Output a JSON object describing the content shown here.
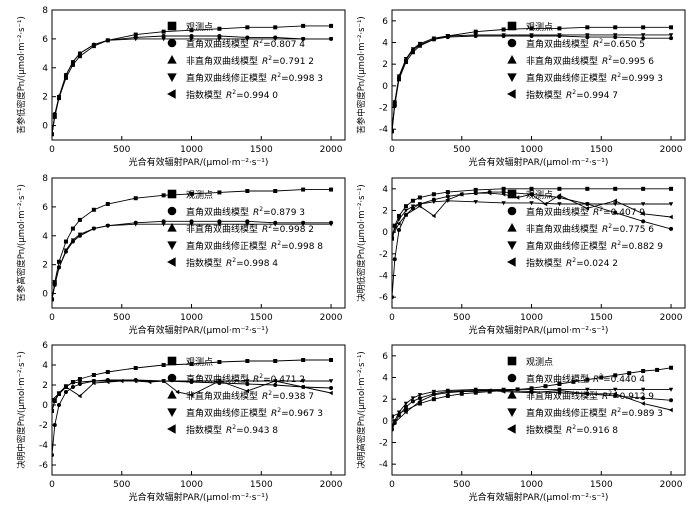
{
  "marker_names": [
    "square",
    "circle",
    "triangle-up",
    "triangle-down",
    "triangle-left"
  ],
  "chart_data": [
    {
      "type": "line",
      "xlabel": "光合有效辐射PAR/(μmol·m⁻²·s⁻¹)",
      "ylabel": "苦参低密度Pn/(μmol·m⁻²·s⁻¹)",
      "xlim": [
        0,
        2100
      ],
      "ylim": [
        -1,
        8
      ],
      "xticks": [
        0,
        500,
        1000,
        1500,
        2000
      ],
      "yticks": [
        0,
        2,
        4,
        6,
        8
      ],
      "legend": [
        {
          "marker": "square",
          "label": "观测点",
          "r2": ""
        },
        {
          "marker": "circle",
          "label": "直角双曲线模型",
          "r2": "=0.807 4"
        },
        {
          "marker": "triangle-up",
          "label": "非直角双曲线模型",
          "r2": "=0.791 2"
        },
        {
          "marker": "triangle-down",
          "label": "直角双曲线修正模型",
          "r2": "=0.998 3"
        },
        {
          "marker": "triangle-left",
          "label": "指数模型",
          "r2": "=0.994 0"
        }
      ],
      "series": [
        {
          "x": [
            0,
            20,
            50,
            100,
            150,
            200,
            300,
            400,
            600,
            800,
            1000,
            1200,
            1400,
            1600,
            1800,
            2000
          ],
          "y": [
            -0.6,
            0.8,
            2.0,
            3.5,
            4.4,
            5.0,
            5.6,
            5.9,
            6.1,
            6.2,
            6.2,
            6.2,
            6.1,
            6.1,
            6.0,
            6.0
          ]
        },
        {
          "x": [
            0,
            20,
            50,
            100,
            150,
            200,
            300,
            400,
            600,
            800,
            1000,
            1200,
            1400,
            1600,
            1800,
            2000
          ],
          "y": [
            -0.6,
            0.6,
            1.9,
            3.3,
            4.2,
            4.8,
            5.5,
            5.9,
            6.3,
            6.5,
            6.6,
            6.7,
            6.8,
            6.8,
            6.9,
            6.9
          ]
        },
        {
          "x": [
            0,
            20,
            50,
            100,
            150,
            200,
            300,
            400,
            600,
            800,
            1000,
            1200,
            1400,
            1600,
            1800,
            2000
          ],
          "y": [
            -0.6,
            0.7,
            2.0,
            3.5,
            4.4,
            5.0,
            5.6,
            5.9,
            6.0,
            6.0,
            6.0,
            6.0,
            6.0,
            6.0,
            6.0,
            6.0
          ]
        }
      ]
    },
    {
      "type": "line",
      "xlabel": "光合有效辐射PAR/(μmol·m⁻²·s⁻¹)",
      "ylabel": "苦参中密度Pn/(μmol·m⁻²·s⁻¹)",
      "xlim": [
        0,
        2100
      ],
      "ylim": [
        -5,
        7
      ],
      "xticks": [
        0,
        500,
        1000,
        1500,
        2000
      ],
      "yticks": [
        -4,
        -2,
        0,
        2,
        4,
        6
      ],
      "legend": [
        {
          "marker": "square",
          "label": "观测点",
          "r2": ""
        },
        {
          "marker": "circle",
          "label": "直角双曲线模型",
          "r2": "=0.650 5"
        },
        {
          "marker": "triangle-up",
          "label": "非直角双曲线模型",
          "r2": "=0.995 6"
        },
        {
          "marker": "triangle-down",
          "label": "直角双曲线修正模型",
          "r2": "=0.999 3"
        },
        {
          "marker": "triangle-left",
          "label": "指数模型",
          "r2": "=0.994 7"
        }
      ],
      "series": [
        {
          "x": [
            0,
            20,
            50,
            100,
            150,
            200,
            300,
            400,
            600,
            800,
            1000,
            1200,
            1400,
            1600,
            1800,
            2000
          ],
          "y": [
            -4.2,
            -1.5,
            0.8,
            2.4,
            3.3,
            3.8,
            4.3,
            4.5,
            4.6,
            4.6,
            4.6,
            4.6,
            4.5,
            4.5,
            4.4,
            4.4
          ]
        },
        {
          "x": [
            0,
            20,
            50,
            100,
            150,
            200,
            300,
            400,
            600,
            800,
            1000,
            1200,
            1400,
            1600,
            1800,
            2000
          ],
          "y": [
            -4.2,
            -1.8,
            0.6,
            2.2,
            3.1,
            3.7,
            4.3,
            4.6,
            5.0,
            5.2,
            5.3,
            5.3,
            5.4,
            5.4,
            5.4,
            5.4
          ]
        },
        {
          "x": [
            0,
            20,
            50,
            100,
            150,
            200,
            300,
            400,
            600,
            800,
            1000,
            1200,
            1400,
            1600,
            1800,
            2000
          ],
          "y": [
            -4.2,
            -1.5,
            0.9,
            2.5,
            3.4,
            3.9,
            4.4,
            4.6,
            4.7,
            4.7,
            4.7,
            4.7,
            4.7,
            4.7,
            4.7,
            4.7
          ]
        }
      ]
    },
    {
      "type": "line",
      "xlabel": "光合有效辐射PAR/(μmol·m⁻²·s⁻¹)",
      "ylabel": "苦参高密度Pn/(μmol·m⁻²·s⁻¹)",
      "xlim": [
        0,
        2100
      ],
      "ylim": [
        -1,
        8
      ],
      "xticks": [
        0,
        500,
        1000,
        1500,
        2000
      ],
      "yticks": [
        0,
        2,
        4,
        6,
        8
      ],
      "legend": [
        {
          "marker": "square",
          "label": "观测点",
          "r2": ""
        },
        {
          "marker": "circle",
          "label": "直角双曲线模型",
          "r2": "=0.879 3"
        },
        {
          "marker": "triangle-up",
          "label": "非直角双曲线模型",
          "r2": "=0.998 2"
        },
        {
          "marker": "triangle-down",
          "label": "直角双曲线修正模型",
          "r2": "=0.998 8"
        },
        {
          "marker": "triangle-left",
          "label": "指数模型",
          "r2": "=0.998 4"
        }
      ],
      "series": [
        {
          "x": [
            0,
            20,
            50,
            100,
            150,
            200,
            300,
            400,
            600,
            800,
            1000,
            1200,
            1400,
            1600,
            1800,
            2000
          ],
          "y": [
            -0.4,
            0.6,
            1.8,
            2.9,
            3.6,
            4.0,
            4.5,
            4.7,
            4.9,
            5.0,
            5.0,
            5.0,
            5.0,
            4.9,
            4.9,
            4.9
          ]
        },
        {
          "x": [
            0,
            20,
            50,
            100,
            150,
            200,
            300,
            400,
            600,
            800,
            1000,
            1200,
            1400,
            1600,
            1800,
            2000
          ],
          "y": [
            -0.4,
            0.8,
            2.2,
            3.6,
            4.5,
            5.1,
            5.8,
            6.2,
            6.6,
            6.8,
            6.9,
            7.0,
            7.1,
            7.1,
            7.2,
            7.2
          ]
        },
        {
          "x": [
            0,
            20,
            50,
            100,
            150,
            200,
            300,
            400,
            600,
            800,
            1000,
            1200,
            1400,
            1600,
            1800,
            2000
          ],
          "y": [
            -0.4,
            0.6,
            1.8,
            3.0,
            3.7,
            4.1,
            4.5,
            4.7,
            4.8,
            4.8,
            4.8,
            4.8,
            4.8,
            4.8,
            4.8,
            4.8
          ]
        }
      ]
    },
    {
      "type": "line",
      "xlabel": "光合有效辐射PAR/(μmol·m⁻²·s⁻¹)",
      "ylabel": "决明低密度Pn/(μmol·m⁻²·s⁻¹)",
      "xlim": [
        0,
        2100
      ],
      "ylim": [
        -7,
        5
      ],
      "xticks": [
        0,
        500,
        1000,
        1500,
        2000
      ],
      "yticks": [
        -6,
        -4,
        -2,
        0,
        2,
        4
      ],
      "legend": [
        {
          "marker": "square",
          "label": "观测点",
          "r2": ""
        },
        {
          "marker": "circle",
          "label": "直角双曲线模型",
          "r2": "=0.407 9"
        },
        {
          "marker": "triangle-up",
          "label": "非直角双曲线模型",
          "r2": "=0.775 6"
        },
        {
          "marker": "triangle-down",
          "label": "直角双曲线修正模型",
          "r2": "=0.882 9"
        },
        {
          "marker": "triangle-left",
          "label": "指数模型",
          "r2": "=0.024 2"
        }
      ],
      "series": [
        {
          "x": [
            0,
            20,
            50,
            100,
            150,
            200,
            300,
            400,
            500,
            600,
            700,
            800,
            1000,
            1200,
            1400,
            1600,
            1800,
            2000
          ],
          "y": [
            -6.0,
            -2.5,
            0.2,
            1.6,
            2.2,
            2.6,
            3.0,
            3.3,
            3.5,
            3.6,
            3.7,
            3.7,
            3.5,
            3.2,
            2.6,
            1.8,
            1.0,
            0.3
          ]
        },
        {
          "x": [
            0,
            20,
            50,
            100,
            150,
            200,
            300,
            400,
            600,
            800,
            1000,
            1200,
            1400,
            1600,
            1800,
            2000
          ],
          "y": [
            -0.6,
            0.6,
            1.5,
            2.4,
            2.9,
            3.2,
            3.5,
            3.7,
            3.9,
            4.0,
            4.0,
            4.0,
            4.0,
            4.0,
            4.0,
            4.0
          ]
        },
        {
          "x": [
            0,
            20,
            50,
            100,
            150,
            200,
            300,
            400,
            600,
            800,
            1000,
            1200,
            1400,
            1600,
            1800,
            2000
          ],
          "y": [
            -0.6,
            0.4,
            1.2,
            2.0,
            2.4,
            2.6,
            2.8,
            2.9,
            2.8,
            2.7,
            2.7,
            2.6,
            2.6,
            2.6,
            2.6,
            2.6
          ]
        },
        {
          "x": [
            0,
            50,
            100,
            200,
            300,
            400,
            500,
            600,
            700,
            800,
            900,
            1000,
            1100,
            1200,
            1400,
            1600,
            1800,
            2000
          ],
          "y": [
            -0.4,
            0.8,
            1.6,
            2.4,
            1.5,
            3.0,
            3.5,
            3.6,
            3.6,
            3.5,
            3.2,
            3.5,
            2.6,
            3.4,
            2.2,
            2.9,
            1.7,
            1.4
          ]
        }
      ]
    },
    {
      "type": "line",
      "xlabel": "光合有效辐射PAR/(μmol·m⁻²·s⁻¹)",
      "ylabel": "决明中密度Pn/(μmol·m⁻²·s⁻¹)",
      "xlim": [
        0,
        2100
      ],
      "ylim": [
        -7,
        6
      ],
      "xticks": [
        0,
        500,
        1000,
        1500,
        2000
      ],
      "yticks": [
        -6,
        -4,
        -2,
        0,
        2,
        4,
        6
      ],
      "legend": [
        {
          "marker": "square",
          "label": "观测点",
          "r2": ""
        },
        {
          "marker": "circle",
          "label": "直角双曲线模型",
          "r2": "=0.471 2"
        },
        {
          "marker": "triangle-up",
          "label": "非直角双曲线模型",
          "r2": "=0.938 7"
        },
        {
          "marker": "triangle-down",
          "label": "直角双曲线修正模型",
          "r2": "=0.967 3"
        },
        {
          "marker": "triangle-left",
          "label": "指数模型",
          "r2": "=0.943 8"
        }
      ],
      "series": [
        {
          "x": [
            0,
            20,
            50,
            100,
            150,
            200,
            300,
            400,
            600,
            800,
            1000,
            1200,
            1400,
            1600,
            1800,
            2000
          ],
          "y": [
            -5.0,
            -2.0,
            0.0,
            1.3,
            1.8,
            2.1,
            2.4,
            2.5,
            2.5,
            2.4,
            2.3,
            2.2,
            2.1,
            2.0,
            1.8,
            1.7
          ]
        },
        {
          "x": [
            0,
            20,
            50,
            100,
            150,
            200,
            300,
            400,
            600,
            800,
            1000,
            1200,
            1400,
            1600,
            1800,
            2000
          ],
          "y": [
            -0.6,
            0.4,
            1.1,
            1.8,
            2.3,
            2.6,
            3.0,
            3.3,
            3.7,
            4.0,
            4.1,
            4.3,
            4.4,
            4.4,
            4.5,
            4.5
          ]
        },
        {
          "x": [
            0,
            20,
            50,
            100,
            150,
            200,
            300,
            400,
            600,
            800,
            1000,
            1200,
            1400,
            1600,
            1800,
            2000
          ],
          "y": [
            -0.6,
            0.5,
            1.2,
            1.9,
            2.2,
            2.3,
            2.4,
            2.4,
            2.4,
            2.4,
            2.4,
            2.4,
            2.4,
            2.4,
            2.4,
            2.4
          ]
        },
        {
          "x": [
            0,
            100,
            200,
            300,
            400,
            500,
            600,
            700,
            800,
            900,
            1000,
            1200,
            1400,
            1600,
            1800,
            2000
          ],
          "y": [
            0.5,
            1.8,
            0.9,
            2.2,
            2.3,
            2.4,
            2.4,
            2.3,
            2.4,
            1.3,
            1.0,
            2.4,
            1.4,
            2.4,
            1.8,
            1.2
          ]
        }
      ]
    },
    {
      "type": "line",
      "xlabel": "光合有效辐射PAR/(μmol·m⁻²·s⁻¹)",
      "ylabel": "决明高密度Pn/(μmol·m⁻²·s⁻¹)",
      "xlim": [
        0,
        2100
      ],
      "ylim": [
        -5,
        7
      ],
      "xticks": [
        0,
        500,
        1000,
        1500,
        2000
      ],
      "yticks": [
        -4,
        -2,
        0,
        2,
        4,
        6
      ],
      "legend": [
        {
          "marker": "square",
          "label": "观测点",
          "r2": ""
        },
        {
          "marker": "circle",
          "label": "直角双曲线模型",
          "r2": "=0.440 4"
        },
        {
          "marker": "triangle-up",
          "label": "非直角双曲线模型",
          "r2": "=0.912 9"
        },
        {
          "marker": "triangle-down",
          "label": "直角双曲线修正模型",
          "r2": "=0.989 3"
        },
        {
          "marker": "triangle-left",
          "label": "指数模型",
          "r2": "=0.916 8"
        }
      ],
      "series": [
        {
          "x": [
            0,
            20,
            50,
            100,
            150,
            200,
            300,
            400,
            600,
            800,
            1000,
            1200,
            1400,
            1600,
            1800,
            2000
          ],
          "y": [
            -0.8,
            -0.2,
            0.5,
            1.3,
            1.8,
            2.1,
            2.5,
            2.7,
            2.8,
            2.8,
            2.7,
            2.6,
            2.5,
            2.3,
            2.1,
            1.9
          ]
        },
        {
          "x": [
            0,
            100,
            200,
            300,
            400,
            500,
            600,
            700,
            800,
            900,
            1000,
            1100,
            1200,
            1300,
            1400,
            1500,
            1600,
            1700,
            1800,
            1900,
            2000
          ],
          "y": [
            0.4,
            1.0,
            1.6,
            2.0,
            2.3,
            2.5,
            2.6,
            2.7,
            2.8,
            2.9,
            3.0,
            3.2,
            3.4,
            3.6,
            3.8,
            4.0,
            4.2,
            4.4,
            4.6,
            4.7,
            4.9
          ]
        },
        {
          "x": [
            0,
            20,
            50,
            100,
            150,
            200,
            300,
            400,
            600,
            800,
            1000,
            1200,
            1400,
            1600,
            1800,
            2000
          ],
          "y": [
            -0.8,
            0.0,
            0.8,
            1.6,
            2.1,
            2.4,
            2.7,
            2.8,
            2.9,
            2.9,
            2.9,
            2.9,
            2.9,
            2.9,
            2.9,
            2.9
          ]
        },
        {
          "x": [
            0,
            100,
            200,
            300,
            400,
            500,
            600,
            700,
            800,
            1000,
            1200,
            1400,
            1600,
            1800,
            2000
          ],
          "y": [
            -0.4,
            0.8,
            1.8,
            2.4,
            2.6,
            2.7,
            2.7,
            2.8,
            2.7,
            2.6,
            2.8,
            2.5,
            2.5,
            1.6,
            1.0
          ]
        }
      ]
    }
  ]
}
